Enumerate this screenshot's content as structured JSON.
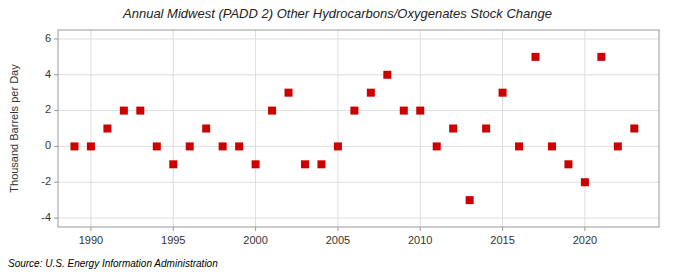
{
  "chart_data": {
    "type": "scatter",
    "title": "Annual Midwest (PADD 2) Other Hydrocarbons/Oxygenates Stock Change",
    "ylabel": "Thousand Barrels per Day",
    "source": "Source: U.S. Energy Information Administration",
    "x": [
      1989,
      1990,
      1991,
      1992,
      1993,
      1994,
      1995,
      1996,
      1997,
      1998,
      1999,
      2000,
      2001,
      2002,
      2003,
      2004,
      2005,
      2006,
      2007,
      2008,
      2009,
      2010,
      2011,
      2012,
      2013,
      2014,
      2015,
      2016,
      2017,
      2018,
      2019,
      2020,
      2021,
      2022,
      2023
    ],
    "values": [
      0,
      0,
      1,
      2,
      2,
      0,
      -1,
      0,
      1,
      0,
      0,
      -1,
      2,
      3,
      -1,
      -1,
      0,
      2,
      3,
      4,
      2,
      2,
      0,
      1,
      -3,
      1,
      3,
      0,
      5,
      0,
      -1,
      -2,
      5,
      0,
      1
    ],
    "color": "#cc0000",
    "marker": "square",
    "xlim": [
      1988.0,
      2024.5
    ],
    "xticks": [
      1990,
      1995,
      2000,
      2005,
      2010,
      2015,
      2020
    ],
    "ylim": [
      -4.5,
      6.5
    ],
    "yticks": [
      -4,
      -2,
      0,
      2,
      4,
      6
    ],
    "grid": true
  }
}
